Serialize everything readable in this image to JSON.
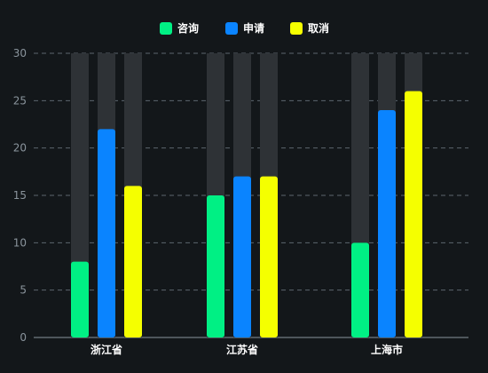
{
  "chart_data": {
    "type": "bar",
    "categories": [
      "浙江省",
      "江苏省",
      "上海市"
    ],
    "series": [
      {
        "name": "咨询",
        "values": [
          8,
          15,
          10
        ],
        "color": "#00f084"
      },
      {
        "name": "申请",
        "values": [
          22,
          17,
          24
        ],
        "color": "#0a84ff"
      },
      {
        "name": "取消",
        "values": [
          16,
          17,
          26
        ],
        "color": "#f5ff00"
      }
    ],
    "ylim": [
      0,
      30
    ],
    "yticks": [
      "0",
      "5",
      "10",
      "15",
      "20",
      "25",
      "30"
    ],
    "background_bar_max": 30,
    "grid": true,
    "legend_position": "top-center",
    "background_color": "#13171a",
    "track_color": "#2e3236",
    "grid_color": "#5c666e"
  }
}
